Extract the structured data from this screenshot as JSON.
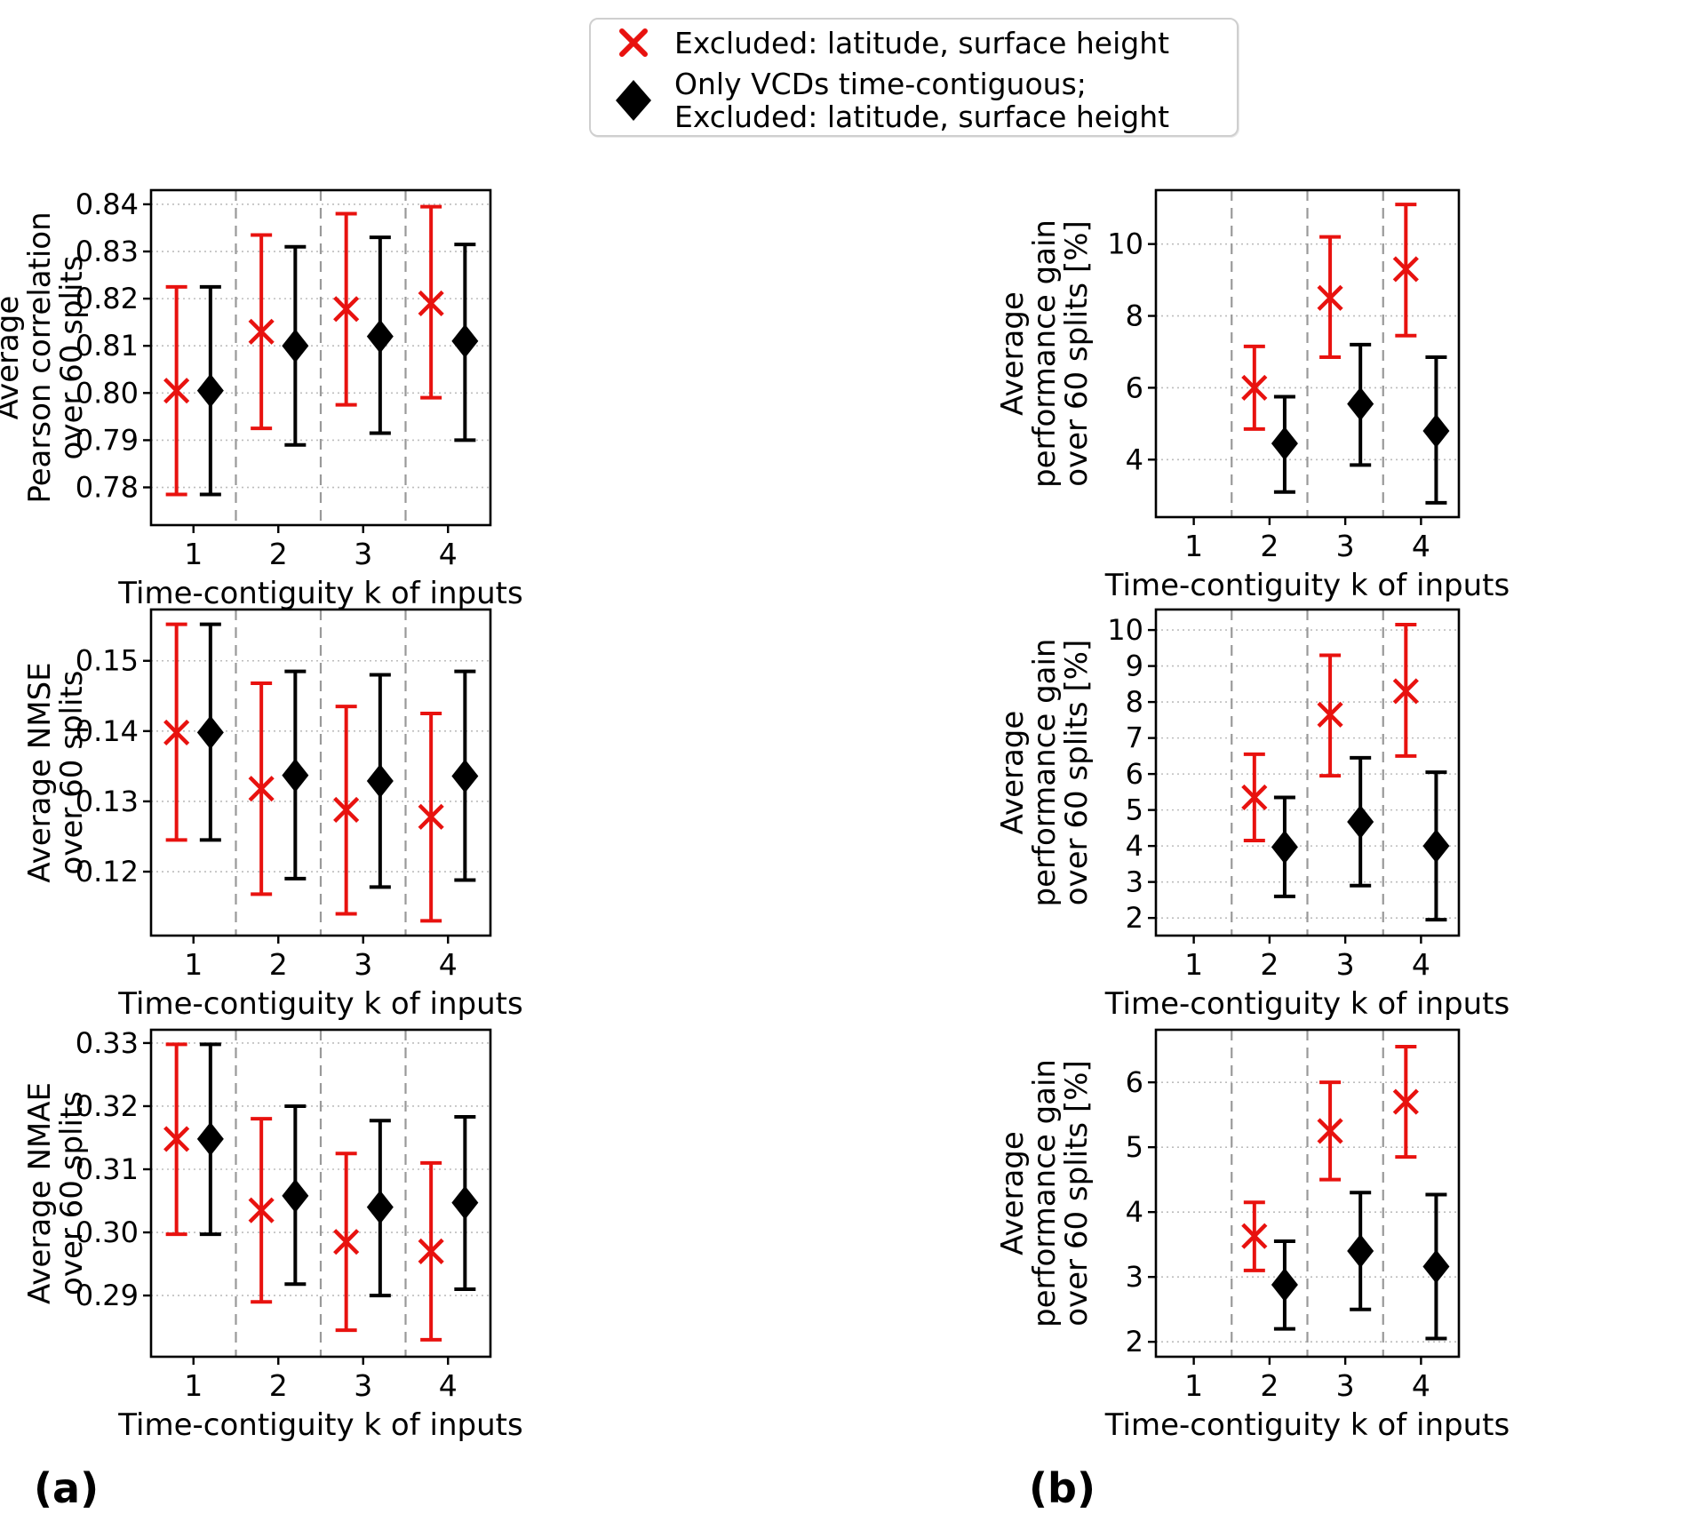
{
  "figure": {
    "legend": {
      "items": [
        {
          "marker": "red-x",
          "label": "Excluded: latitude, surface height"
        },
        {
          "marker": "black-diamond",
          "label_line1": "Only VCDs time-contiguous;",
          "label_line2": "Excluded: latitude, surface height"
        }
      ]
    },
    "captions": {
      "a": "(a)",
      "b": "(b)"
    }
  },
  "colors": {
    "red": "#e8120f",
    "black": "#000000",
    "grid": "#bdbdbd",
    "vline": "#999999",
    "spine": "#000000"
  },
  "chart_data": [
    {
      "id": "avg-pearson-correlation",
      "type": "errorbar",
      "xlabel": "Time-contiguity k of inputs",
      "ylabel": "Average\nPearson correlation\nover 60 splits",
      "xlim": [
        0.5,
        4.5
      ],
      "xticks": [
        1,
        2,
        3,
        4
      ],
      "xtick_labels": [
        "1",
        "2",
        "3",
        "4"
      ],
      "vlines": [
        1.5,
        2.5,
        3.5
      ],
      "ylim": [
        0.772,
        0.843
      ],
      "yticks": [
        0.78,
        0.79,
        0.8,
        0.81,
        0.82,
        0.83,
        0.84
      ],
      "ytick_labels": [
        "0.78",
        "0.79",
        "0.80",
        "0.81",
        "0.82",
        "0.83",
        "0.84"
      ],
      "grid": "dotted-horizontal",
      "legend_position": "none",
      "series": [
        {
          "name": "Excluded: latitude, surface height",
          "marker": "x",
          "color_key": "red",
          "x_offset": -0.2,
          "points": [
            {
              "x": 1,
              "y": 0.8005,
              "lo": 0.7785,
              "hi": 0.8225
            },
            {
              "x": 2,
              "y": 0.813,
              "lo": 0.7925,
              "hi": 0.8335
            },
            {
              "x": 3,
              "y": 0.8178,
              "lo": 0.7975,
              "hi": 0.838
            },
            {
              "x": 4,
              "y": 0.819,
              "lo": 0.799,
              "hi": 0.8395
            }
          ]
        },
        {
          "name": "Only VCDs time-contiguous; Excluded: latitude, surface height",
          "marker": "diamond",
          "color_key": "black",
          "x_offset": 0.2,
          "points": [
            {
              "x": 1,
              "y": 0.8005,
              "lo": 0.7785,
              "hi": 0.8225
            },
            {
              "x": 2,
              "y": 0.81,
              "lo": 0.789,
              "hi": 0.831
            },
            {
              "x": 3,
              "y": 0.812,
              "lo": 0.7915,
              "hi": 0.833
            },
            {
              "x": 4,
              "y": 0.811,
              "lo": 0.79,
              "hi": 0.8315
            }
          ]
        }
      ]
    },
    {
      "id": "avg-nmse",
      "type": "errorbar",
      "xlabel": "Time-contiguity k of inputs",
      "ylabel": "Average NMSE\nover 60 splits",
      "xlim": [
        0.5,
        4.5
      ],
      "xticks": [
        1,
        2,
        3,
        4
      ],
      "xtick_labels": [
        "1",
        "2",
        "3",
        "4"
      ],
      "vlines": [
        1.5,
        2.5,
        3.5
      ],
      "ylim": [
        0.1109,
        0.1573
      ],
      "yticks": [
        0.12,
        0.13,
        0.14,
        0.15
      ],
      "ytick_labels": [
        "0.12",
        "0.13",
        "0.14",
        "0.15"
      ],
      "grid": "dotted-horizontal",
      "legend_position": "none",
      "series": [
        {
          "name": "Excluded: latitude, surface height",
          "marker": "x",
          "color_key": "red",
          "x_offset": -0.2,
          "points": [
            {
              "x": 1,
              "y": 0.1398,
              "lo": 0.1245,
              "hi": 0.1552
            },
            {
              "x": 2,
              "y": 0.1318,
              "lo": 0.1168,
              "hi": 0.1468
            },
            {
              "x": 3,
              "y": 0.1288,
              "lo": 0.114,
              "hi": 0.1435
            },
            {
              "x": 4,
              "y": 0.1278,
              "lo": 0.113,
              "hi": 0.1425
            }
          ]
        },
        {
          "name": "Only VCDs time-contiguous; Excluded: latitude, surface height",
          "marker": "diamond",
          "color_key": "black",
          "x_offset": 0.2,
          "points": [
            {
              "x": 1,
              "y": 0.1398,
              "lo": 0.1245,
              "hi": 0.1552
            },
            {
              "x": 2,
              "y": 0.1337,
              "lo": 0.119,
              "hi": 0.1485
            },
            {
              "x": 3,
              "y": 0.1329,
              "lo": 0.1178,
              "hi": 0.148
            },
            {
              "x": 4,
              "y": 0.1336,
              "lo": 0.1188,
              "hi": 0.1485
            }
          ]
        }
      ]
    },
    {
      "id": "avg-nmae",
      "type": "errorbar",
      "xlabel": "Time-contiguity k of inputs",
      "ylabel": "Average NMAE\nover 60 splits",
      "xlim": [
        0.5,
        4.5
      ],
      "xticks": [
        1,
        2,
        3,
        4
      ],
      "xtick_labels": [
        "1",
        "2",
        "3",
        "4"
      ],
      "vlines": [
        1.5,
        2.5,
        3.5
      ],
      "ylim": [
        0.2803,
        0.3321
      ],
      "yticks": [
        0.29,
        0.3,
        0.31,
        0.32,
        0.33
      ],
      "ytick_labels": [
        "0.29",
        "0.30",
        "0.31",
        "0.32",
        "0.33"
      ],
      "grid": "dotted-horizontal",
      "legend_position": "none",
      "series": [
        {
          "name": "Excluded: latitude, surface height",
          "marker": "x",
          "color_key": "red",
          "x_offset": -0.2,
          "points": [
            {
              "x": 1,
              "y": 0.3148,
              "lo": 0.2997,
              "hi": 0.3298
            },
            {
              "x": 2,
              "y": 0.3035,
              "lo": 0.289,
              "hi": 0.318
            },
            {
              "x": 3,
              "y": 0.2985,
              "lo": 0.2845,
              "hi": 0.3125
            },
            {
              "x": 4,
              "y": 0.297,
              "lo": 0.283,
              "hi": 0.311
            }
          ]
        },
        {
          "name": "Only VCDs time-contiguous; Excluded: latitude, surface height",
          "marker": "diamond",
          "color_key": "black",
          "x_offset": 0.2,
          "points": [
            {
              "x": 1,
              "y": 0.3148,
              "lo": 0.2997,
              "hi": 0.3298
            },
            {
              "x": 2,
              "y": 0.3058,
              "lo": 0.2918,
              "hi": 0.32
            },
            {
              "x": 3,
              "y": 0.304,
              "lo": 0.29,
              "hi": 0.3177
            },
            {
              "x": 4,
              "y": 0.3047,
              "lo": 0.291,
              "hi": 0.3183
            }
          ]
        }
      ]
    },
    {
      "id": "avg-performance-gain-pearson",
      "type": "errorbar",
      "xlabel": "Time-contiguity k of inputs",
      "ylabel": "Average\nperformance gain\nover 60 splits [%]",
      "xlim": [
        0.5,
        4.5
      ],
      "xticks": [
        1,
        2,
        3,
        4
      ],
      "xtick_labels": [
        "1",
        "2",
        "3",
        "4"
      ],
      "vlines": [
        1.5,
        2.5,
        3.5
      ],
      "ylim": [
        2.4,
        11.5
      ],
      "yticks": [
        4,
        6,
        8,
        10
      ],
      "ytick_labels": [
        "4",
        "6",
        "8",
        "10"
      ],
      "grid": "dotted-horizontal",
      "legend_position": "none",
      "series": [
        {
          "name": "Excluded: latitude, surface height",
          "marker": "x",
          "color_key": "red",
          "x_offset": -0.2,
          "points": [
            {
              "x": 2,
              "y": 6.0,
              "lo": 4.85,
              "hi": 7.15
            },
            {
              "x": 3,
              "y": 8.5,
              "lo": 6.85,
              "hi": 10.2
            },
            {
              "x": 4,
              "y": 9.3,
              "lo": 7.45,
              "hi": 11.1
            }
          ]
        },
        {
          "name": "Only VCDs time-contiguous; Excluded: latitude, surface height",
          "marker": "diamond",
          "color_key": "black",
          "x_offset": 0.2,
          "points": [
            {
              "x": 2,
              "y": 4.45,
              "lo": 3.1,
              "hi": 5.75
            },
            {
              "x": 3,
              "y": 5.55,
              "lo": 3.85,
              "hi": 7.2
            },
            {
              "x": 4,
              "y": 4.8,
              "lo": 2.8,
              "hi": 6.85
            }
          ]
        }
      ]
    },
    {
      "id": "avg-performance-gain-nmse",
      "type": "errorbar",
      "xlabel": "Time-contiguity k of inputs",
      "ylabel": "Average\nperformance gain\nover 60 splits [%]",
      "xlim": [
        0.5,
        4.5
      ],
      "xticks": [
        1,
        2,
        3,
        4
      ],
      "xtick_labels": [
        "1",
        "2",
        "3",
        "4"
      ],
      "vlines": [
        1.5,
        2.5,
        3.5
      ],
      "ylim": [
        1.51,
        10.57
      ],
      "yticks": [
        2,
        3,
        4,
        5,
        6,
        7,
        8,
        9,
        10
      ],
      "ytick_labels": [
        "2",
        "3",
        "4",
        "5",
        "6",
        "7",
        "8",
        "9",
        "10"
      ],
      "grid": "dotted-horizontal",
      "legend_position": "none",
      "series": [
        {
          "name": "Excluded: latitude, surface height",
          "marker": "x",
          "color_key": "red",
          "x_offset": -0.2,
          "points": [
            {
              "x": 2,
              "y": 5.35,
              "lo": 4.15,
              "hi": 6.55
            },
            {
              "x": 3,
              "y": 7.65,
              "lo": 5.95,
              "hi": 9.3
            },
            {
              "x": 4,
              "y": 8.3,
              "lo": 6.5,
              "hi": 10.15
            }
          ]
        },
        {
          "name": "Only VCDs time-contiguous; Excluded: latitude, surface height",
          "marker": "diamond",
          "color_key": "black",
          "x_offset": 0.2,
          "points": [
            {
              "x": 2,
              "y": 3.97,
              "lo": 2.6,
              "hi": 5.35
            },
            {
              "x": 3,
              "y": 4.67,
              "lo": 2.9,
              "hi": 6.45
            },
            {
              "x": 4,
              "y": 4.0,
              "lo": 1.95,
              "hi": 6.05
            }
          ]
        }
      ]
    },
    {
      "id": "avg-performance-gain-nmae",
      "type": "errorbar",
      "xlabel": "Time-contiguity k of inputs",
      "ylabel": "Average\nperformance gain\nover 60 splits [%]",
      "xlim": [
        0.5,
        4.5
      ],
      "xticks": [
        1,
        2,
        3,
        4
      ],
      "xtick_labels": [
        "1",
        "2",
        "3",
        "4"
      ],
      "vlines": [
        1.5,
        2.5,
        3.5
      ],
      "ylim": [
        1.77,
        6.81
      ],
      "yticks": [
        2,
        3,
        4,
        5,
        6
      ],
      "ytick_labels": [
        "2",
        "3",
        "4",
        "5",
        "6"
      ],
      "grid": "dotted-horizontal",
      "legend_position": "none",
      "series": [
        {
          "name": "Excluded: latitude, surface height",
          "marker": "x",
          "color_key": "red",
          "x_offset": -0.2,
          "points": [
            {
              "x": 2,
              "y": 3.63,
              "lo": 3.1,
              "hi": 4.15
            },
            {
              "x": 3,
              "y": 5.25,
              "lo": 4.5,
              "hi": 6.0
            },
            {
              "x": 4,
              "y": 5.7,
              "lo": 4.85,
              "hi": 6.55
            }
          ]
        },
        {
          "name": "Only VCDs time-contiguous; Excluded: latitude, surface height",
          "marker": "diamond",
          "color_key": "black",
          "x_offset": 0.2,
          "points": [
            {
              "x": 2,
              "y": 2.88,
              "lo": 2.2,
              "hi": 3.55
            },
            {
              "x": 3,
              "y": 3.4,
              "lo": 2.5,
              "hi": 4.3
            },
            {
              "x": 4,
              "y": 3.16,
              "lo": 2.05,
              "hi": 4.27
            }
          ]
        }
      ]
    }
  ]
}
